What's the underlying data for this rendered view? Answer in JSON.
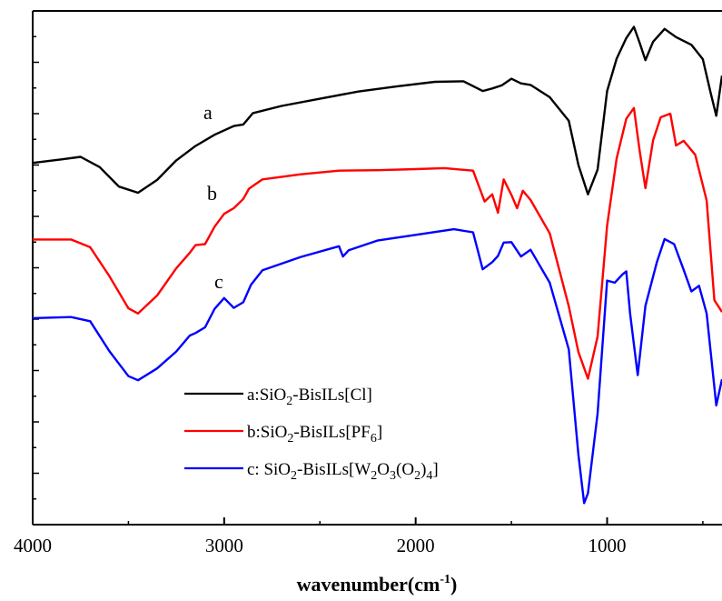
{
  "chart_data": {
    "type": "line",
    "xlabel_main": "wavenumber(cm",
    "xlabel_sup": "-1",
    "xlabel_end": ")",
    "ylabel": "",
    "xlim": [
      4000,
      400
    ],
    "x_reversed": true,
    "ylim": [
      0,
      100
    ],
    "x_ticks": [
      4000,
      3000,
      2000,
      1000
    ],
    "y_ticks_shown": false,
    "grid": false,
    "legend_position": "bottom-center",
    "series": [
      {
        "name": "a:SiO2-BisILs[Cl]",
        "label": "a",
        "color": "#000000",
        "points": [
          [
            4000,
            70.4
          ],
          [
            3850,
            71.1
          ],
          [
            3750,
            71.6
          ],
          [
            3650,
            69.6
          ],
          [
            3550,
            65.8
          ],
          [
            3450,
            64.6
          ],
          [
            3350,
            67.1
          ],
          [
            3250,
            70.9
          ],
          [
            3150,
            73.7
          ],
          [
            3050,
            75.9
          ],
          [
            2950,
            77.6
          ],
          [
            2900,
            77.9
          ],
          [
            2850,
            80.1
          ],
          [
            2700,
            81.5
          ],
          [
            2500,
            82.9
          ],
          [
            2300,
            84.3
          ],
          [
            2100,
            85.3
          ],
          [
            1900,
            86.2
          ],
          [
            1750,
            86.3
          ],
          [
            1650,
            84.4
          ],
          [
            1600,
            84.9
          ],
          [
            1550,
            85.5
          ],
          [
            1500,
            86.8
          ],
          [
            1450,
            85.9
          ],
          [
            1400,
            85.6
          ],
          [
            1300,
            83.2
          ],
          [
            1200,
            78.6
          ],
          [
            1150,
            70.0
          ],
          [
            1100,
            64.3
          ],
          [
            1050,
            69.1
          ],
          [
            1000,
            84.4
          ],
          [
            950,
            90.7
          ],
          [
            900,
            94.7
          ],
          [
            860,
            96.9
          ],
          [
            830,
            93.8
          ],
          [
            800,
            90.4
          ],
          [
            760,
            94.0
          ],
          [
            700,
            96.5
          ],
          [
            640,
            94.9
          ],
          [
            560,
            93.4
          ],
          [
            500,
            90.6
          ],
          [
            460,
            84.2
          ],
          [
            430,
            79.6
          ],
          [
            400,
            87.4
          ]
        ]
      },
      {
        "name": "b:SiO2-BisILs[PF6]",
        "label": "b",
        "color": "#ff0000",
        "points": [
          [
            4000,
            55.5
          ],
          [
            3800,
            55.5
          ],
          [
            3700,
            54.0
          ],
          [
            3600,
            48.4
          ],
          [
            3500,
            42.1
          ],
          [
            3450,
            41.1
          ],
          [
            3350,
            44.6
          ],
          [
            3250,
            49.9
          ],
          [
            3180,
            52.9
          ],
          [
            3150,
            54.4
          ],
          [
            3100,
            54.6
          ],
          [
            3050,
            58.0
          ],
          [
            3000,
            60.5
          ],
          [
            2950,
            61.6
          ],
          [
            2900,
            63.4
          ],
          [
            2870,
            65.4
          ],
          [
            2800,
            67.2
          ],
          [
            2600,
            68.2
          ],
          [
            2400,
            68.9
          ],
          [
            2200,
            69.0
          ],
          [
            2000,
            69.2
          ],
          [
            1850,
            69.4
          ],
          [
            1700,
            68.9
          ],
          [
            1640,
            62.9
          ],
          [
            1600,
            64.3
          ],
          [
            1570,
            60.7
          ],
          [
            1540,
            67.2
          ],
          [
            1500,
            64.2
          ],
          [
            1470,
            61.6
          ],
          [
            1440,
            65.0
          ],
          [
            1400,
            63.2
          ],
          [
            1300,
            56.7
          ],
          [
            1200,
            42.5
          ],
          [
            1150,
            33.6
          ],
          [
            1100,
            28.4
          ],
          [
            1050,
            36.6
          ],
          [
            1000,
            58.2
          ],
          [
            950,
            71.3
          ],
          [
            900,
            79.0
          ],
          [
            860,
            81.1
          ],
          [
            830,
            72.8
          ],
          [
            800,
            65.5
          ],
          [
            760,
            74.8
          ],
          [
            720,
            79.3
          ],
          [
            670,
            80.0
          ],
          [
            640,
            73.8
          ],
          [
            600,
            74.7
          ],
          [
            540,
            72.0
          ],
          [
            480,
            63.1
          ],
          [
            440,
            43.7
          ],
          [
            400,
            41.4
          ]
        ]
      },
      {
        "name": "c: SiO2-BisILs[W2O3(O2)4]",
        "label": "c",
        "color": "#0000ff",
        "points": [
          [
            4000,
            40.2
          ],
          [
            3800,
            40.4
          ],
          [
            3700,
            39.6
          ],
          [
            3600,
            33.8
          ],
          [
            3500,
            28.9
          ],
          [
            3450,
            28.1
          ],
          [
            3350,
            30.4
          ],
          [
            3250,
            33.7
          ],
          [
            3180,
            36.8
          ],
          [
            3150,
            37.3
          ],
          [
            3100,
            38.4
          ],
          [
            3050,
            42.0
          ],
          [
            3000,
            44.1
          ],
          [
            2950,
            42.2
          ],
          [
            2900,
            43.3
          ],
          [
            2860,
            46.7
          ],
          [
            2800,
            49.5
          ],
          [
            2600,
            52.1
          ],
          [
            2400,
            54.2
          ],
          [
            2380,
            52.2
          ],
          [
            2350,
            53.4
          ],
          [
            2200,
            55.3
          ],
          [
            2000,
            56.4
          ],
          [
            1800,
            57.5
          ],
          [
            1700,
            56.9
          ],
          [
            1650,
            49.7
          ],
          [
            1600,
            51.1
          ],
          [
            1570,
            52.3
          ],
          [
            1540,
            54.9
          ],
          [
            1500,
            55.0
          ],
          [
            1450,
            52.2
          ],
          [
            1400,
            53.5
          ],
          [
            1300,
            47.1
          ],
          [
            1200,
            34.1
          ],
          [
            1150,
            13.6
          ],
          [
            1120,
            4.2
          ],
          [
            1100,
            6.1
          ],
          [
            1050,
            21.6
          ],
          [
            1000,
            47.5
          ],
          [
            960,
            47.1
          ],
          [
            920,
            48.7
          ],
          [
            900,
            49.3
          ],
          [
            880,
            41.1
          ],
          [
            840,
            29.1
          ],
          [
            800,
            42.6
          ],
          [
            740,
            51.1
          ],
          [
            700,
            55.6
          ],
          [
            650,
            54.6
          ],
          [
            600,
            49.6
          ],
          [
            560,
            45.4
          ],
          [
            520,
            46.5
          ],
          [
            480,
            41.1
          ],
          [
            430,
            23.2
          ],
          [
            400,
            28.3
          ]
        ]
      }
    ]
  },
  "legend": [
    {
      "prefix": "a:SiO",
      "sub1": "2",
      "mid": "-BisILs[Cl]",
      "sub2": "",
      "end": "",
      "color": "#000000"
    },
    {
      "prefix": "b:SiO",
      "sub1": "2",
      "mid": "-BisILs[PF",
      "sub2": "6",
      "end": "]",
      "color": "#ff0000"
    },
    {
      "prefix": "c: SiO",
      "sub1": "2",
      "mid": "-BisILs[W",
      "sub2": "2",
      "mid2": "O",
      "sub3": "3",
      "mid3": "(O",
      "sub4": "2",
      "mid4": ")",
      "sub5": "4",
      "end": "]",
      "color": "#0000ff"
    }
  ]
}
